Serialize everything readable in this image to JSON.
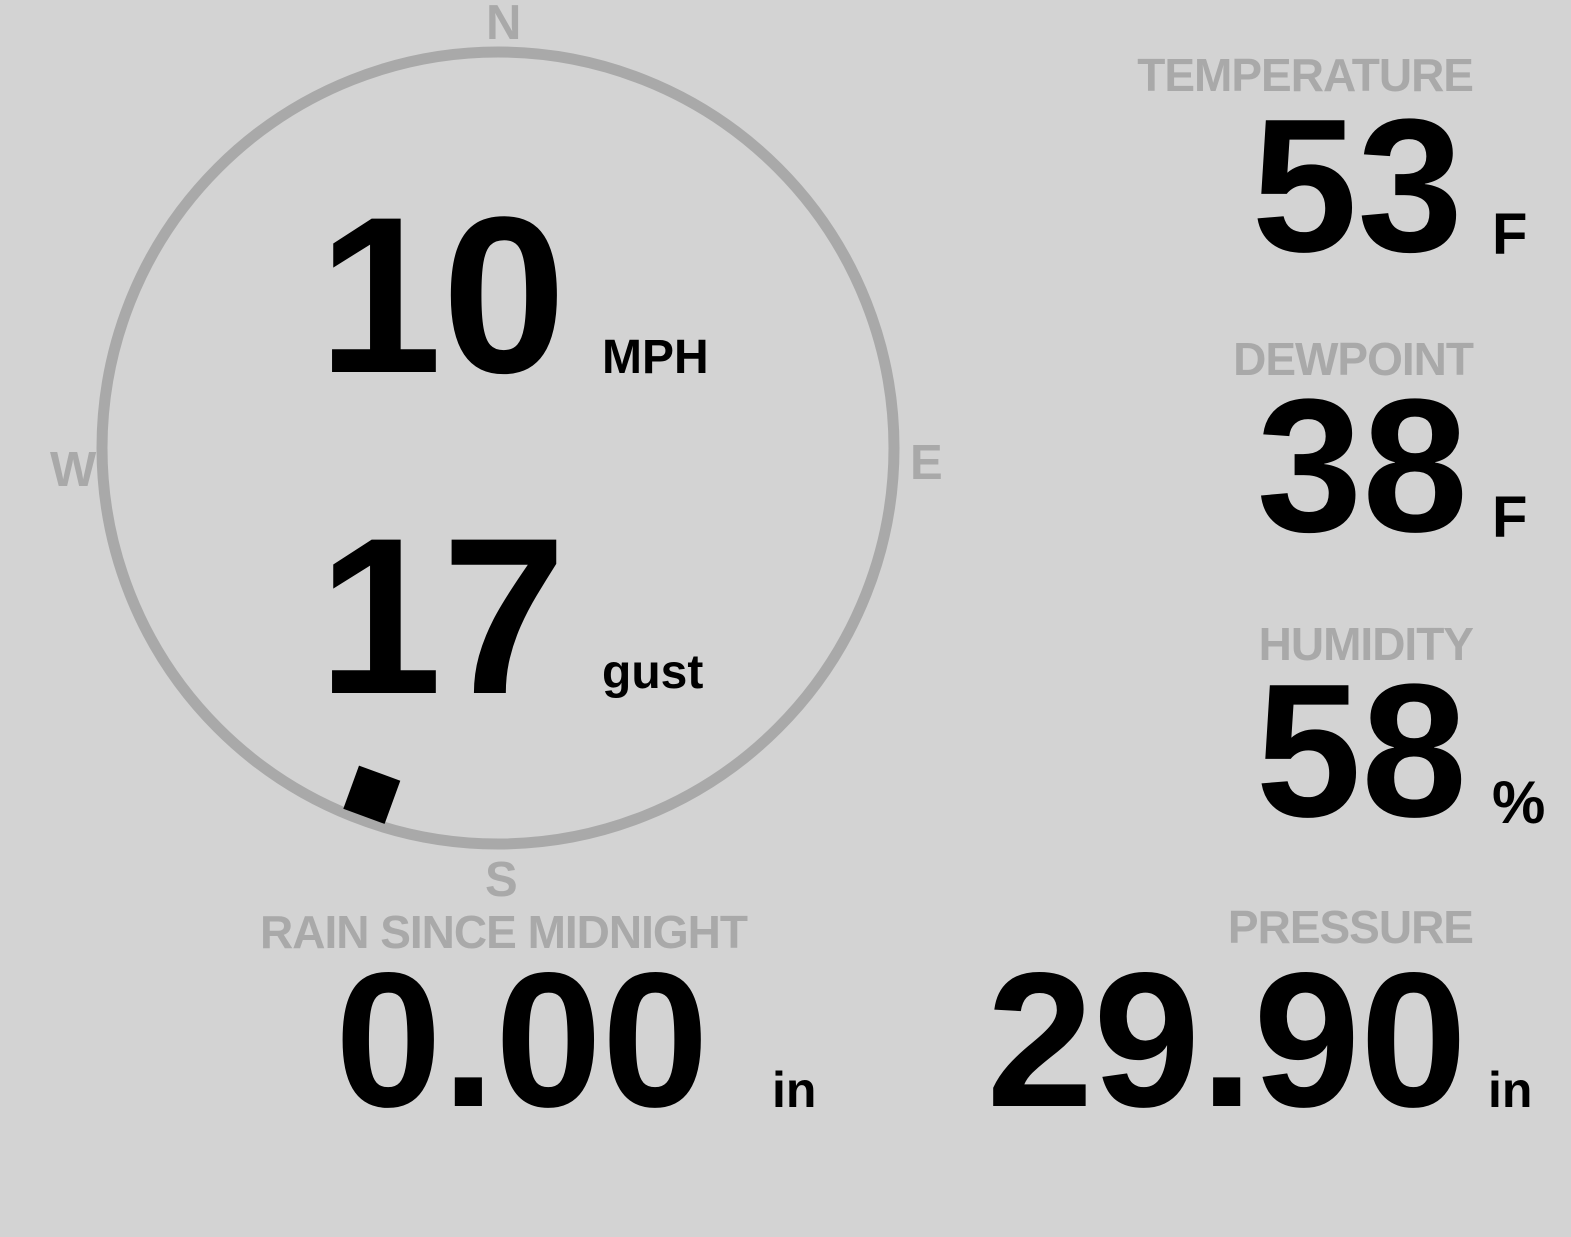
{
  "wind": {
    "compass": {
      "north": "N",
      "east": "E",
      "south": "S",
      "west": "W"
    },
    "speed": "10",
    "speed_unit": "MPH",
    "gust": "17",
    "gust_unit": "gust",
    "direction_deg": 200,
    "ring_color": "#a9a9a9",
    "marker_color": "#000000"
  },
  "temperature": {
    "label": "TEMPERATURE",
    "value": "53",
    "unit": "F"
  },
  "dewpoint": {
    "label": "DEWPOINT",
    "value": "38",
    "unit": "F"
  },
  "humidity": {
    "label": "HUMIDITY",
    "value": "58",
    "unit": "%"
  },
  "rain": {
    "label": "RAIN SINCE MIDNIGHT",
    "value": "0.00",
    "unit": "in"
  },
  "pressure": {
    "label": "PRESSURE",
    "value": "29.90",
    "unit": "in"
  },
  "colors": {
    "background": "#d3d3d3",
    "label": "#a9a9a9",
    "value": "#000000"
  }
}
